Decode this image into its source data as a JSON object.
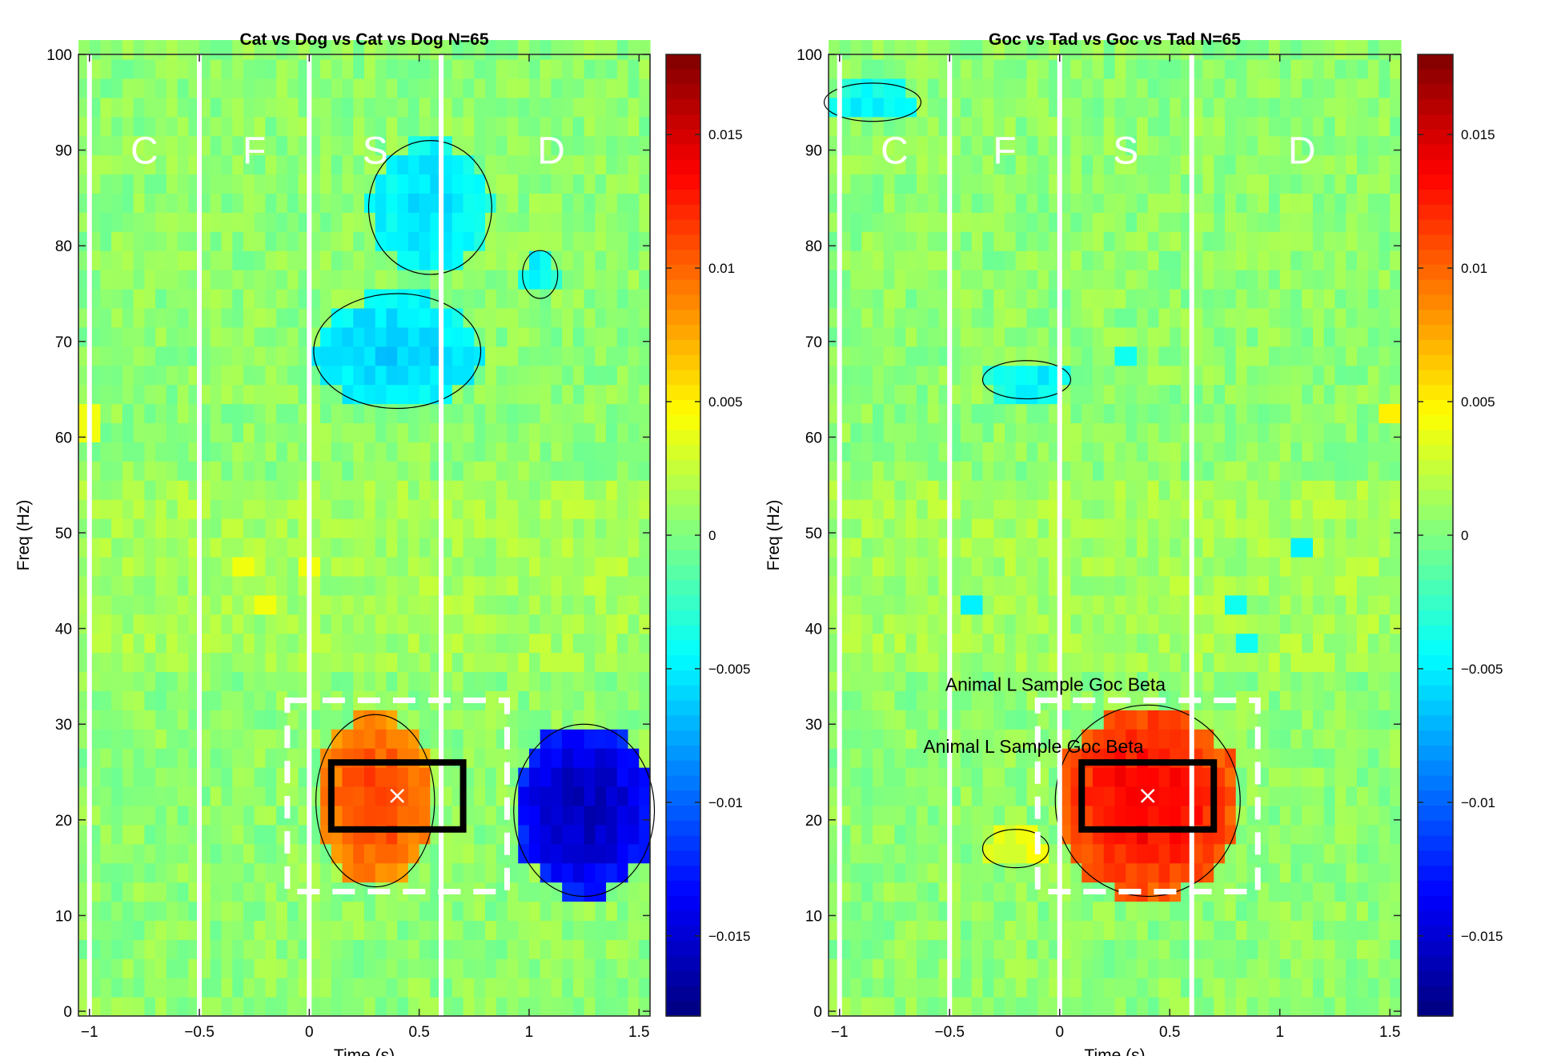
{
  "figure": {
    "colorbar": {
      "colormap": "jet",
      "range": [
        -0.018,
        0.018
      ],
      "ticks": [
        0.015,
        0.01,
        0.005,
        0,
        -0.005,
        -0.01,
        -0.015
      ],
      "tick_labels": [
        "0.015",
        "0.01",
        "0.005",
        "0",
        "−0.005",
        "−0.01",
        "−0.015"
      ]
    },
    "colors": {
      "background_value": "#a8f0c8",
      "grid_text": "#000000",
      "epoch_line": "#ffffff",
      "roi_solid": "#000000",
      "roi_dashed": "#ffffff"
    }
  },
  "chart_data": [
    {
      "type": "heatmap",
      "title": "Cat vs Dog vs Cat vs Dog N=65",
      "xlabel": "Time (s)",
      "ylabel": "Freq (Hz)",
      "xlim": [
        -1.05,
        1.55
      ],
      "ylim": [
        -0.5,
        100
      ],
      "xticks": [
        -1,
        -0.5,
        0,
        0.5,
        1,
        1.5
      ],
      "xtick_labels": [
        "−1",
        "−0.5",
        "0",
        "0.5",
        "1",
        "1.5"
      ],
      "yticks": [
        0,
        10,
        20,
        30,
        40,
        50,
        60,
        70,
        80,
        90,
        100
      ],
      "ytick_labels": [
        "0",
        "10",
        "20",
        "30",
        "40",
        "50",
        "60",
        "70",
        "80",
        "90",
        "100"
      ],
      "epoch_lines_x": [
        -1,
        -0.5,
        0,
        0.6
      ],
      "epoch_labels": [
        {
          "text": "C",
          "x": -0.75,
          "y": 90
        },
        {
          "text": "F",
          "x": -0.25,
          "y": 90
        },
        {
          "text": "S",
          "x": 0.3,
          "y": 90
        },
        {
          "text": "D",
          "x": 1.1,
          "y": 90
        }
      ],
      "roi_solid": {
        "x": [
          0.1,
          0.7
        ],
        "y": [
          19,
          26
        ]
      },
      "roi_dashed": {
        "x": [
          -0.1,
          0.9
        ],
        "y": [
          12.5,
          32.5
        ]
      },
      "peak_marker": {
        "x": 0.4,
        "y": 22.5
      },
      "annotations": [],
      "clusters": [
        {
          "label": "beta-positive",
          "value": 0.011,
          "cx": 0.3,
          "cy": 22,
          "rx": 0.27,
          "ry": 9
        },
        {
          "label": "delay-beta-negative",
          "value": -0.016,
          "cx": 1.25,
          "cy": 21,
          "rx": 0.32,
          "ry": 9
        },
        {
          "label": "gamma-negative-upper",
          "value": -0.0055,
          "cx": 0.55,
          "cy": 84,
          "rx": 0.28,
          "ry": 7
        },
        {
          "label": "gamma-negative-lower",
          "value": -0.006,
          "cx": 0.4,
          "cy": 69,
          "rx": 0.38,
          "ry": 6
        },
        {
          "label": "gamma-negative-small",
          "value": -0.005,
          "cx": 1.05,
          "cy": 77,
          "rx": 0.08,
          "ry": 2.5
        }
      ],
      "small_spots": [
        {
          "value": 0.004,
          "x": -0.28,
          "y": 46
        },
        {
          "value": 0.004,
          "x": -0.2,
          "y": 42.5
        },
        {
          "value": 0.004,
          "x": 0.0,
          "y": 46
        },
        {
          "value": 0.004,
          "x": -1.0,
          "y": 61.5
        }
      ]
    },
    {
      "type": "heatmap",
      "title": "Goc vs Tad vs Goc vs Tad N=65",
      "xlabel": "Time (s)",
      "ylabel": "Freq (Hz)",
      "xlim": [
        -1.05,
        1.55
      ],
      "ylim": [
        -0.5,
        100
      ],
      "xticks": [
        -1,
        -0.5,
        0,
        0.5,
        1,
        1.5
      ],
      "xtick_labels": [
        "−1",
        "−0.5",
        "0",
        "0.5",
        "1",
        "1.5"
      ],
      "yticks": [
        0,
        10,
        20,
        30,
        40,
        50,
        60,
        70,
        80,
        90,
        100
      ],
      "ytick_labels": [
        "0",
        "10",
        "20",
        "30",
        "40",
        "50",
        "60",
        "70",
        "80",
        "90",
        "100"
      ],
      "epoch_lines_x": [
        -1,
        -0.5,
        0,
        0.6
      ],
      "epoch_labels": [
        {
          "text": "C",
          "x": -0.75,
          "y": 90
        },
        {
          "text": "F",
          "x": -0.25,
          "y": 90
        },
        {
          "text": "S",
          "x": 0.3,
          "y": 90
        },
        {
          "text": "D",
          "x": 1.1,
          "y": 90
        }
      ],
      "roi_solid": {
        "x": [
          0.1,
          0.7
        ],
        "y": [
          19,
          26
        ]
      },
      "roi_dashed": {
        "x": [
          -0.1,
          0.9
        ],
        "y": [
          12.5,
          32.5
        ]
      },
      "peak_marker": {
        "x": 0.4,
        "y": 22.5
      },
      "annotations": [
        {
          "text": "Animal L Sample Goc Beta",
          "x": -0.52,
          "y": 33.5
        },
        {
          "text": "Animal L Sample Goc Beta",
          "x": -0.62,
          "y": 27
        }
      ],
      "clusters": [
        {
          "label": "beta-positive",
          "value": 0.0135,
          "cx": 0.4,
          "cy": 22,
          "rx": 0.42,
          "ry": 10
        },
        {
          "label": "beta-positive-left",
          "value": 0.004,
          "cx": -0.2,
          "cy": 17,
          "rx": 0.15,
          "ry": 2
        },
        {
          "label": "gamma-negative",
          "value": -0.005,
          "cx": -0.15,
          "cy": 66,
          "rx": 0.2,
          "ry": 2
        },
        {
          "label": "top-left-negative",
          "value": -0.005,
          "cx": -0.85,
          "cy": 95,
          "rx": 0.22,
          "ry": 2
        }
      ],
      "small_spots": [
        {
          "value": -0.005,
          "x": -0.4,
          "y": 42.5
        },
        {
          "value": -0.004,
          "x": 0.3,
          "y": 69
        },
        {
          "value": -0.004,
          "x": 0.82,
          "y": 42
        },
        {
          "value": -0.004,
          "x": 0.85,
          "y": 38
        },
        {
          "value": -0.005,
          "x": 1.1,
          "y": 48
        },
        {
          "value": 0.005,
          "x": 1.5,
          "y": 62
        }
      ]
    }
  ]
}
